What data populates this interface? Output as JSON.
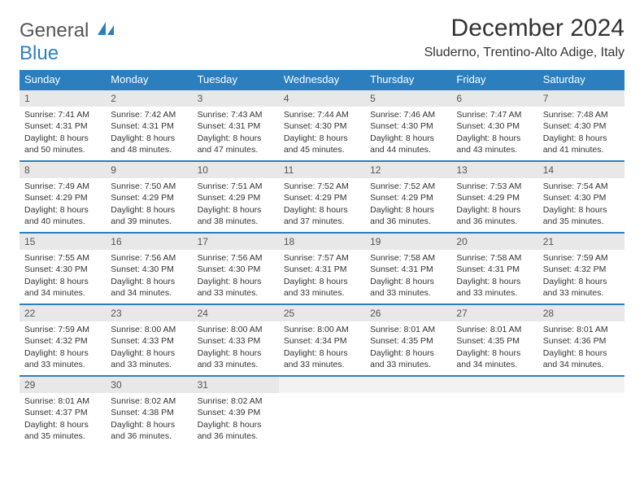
{
  "logo": {
    "line1": "General",
    "line2": "Blue"
  },
  "month_title": "December 2024",
  "location": "Sluderno, Trentino-Alto Adige, Italy",
  "colors": {
    "header_bg": "#2b7fbf",
    "header_fg": "#ffffff",
    "daynum_bg": "#e8e8e8",
    "text": "#333333",
    "rule": "#2b7fbf"
  },
  "weekdays": [
    "Sunday",
    "Monday",
    "Tuesday",
    "Wednesday",
    "Thursday",
    "Friday",
    "Saturday"
  ],
  "weeks": [
    [
      {
        "n": "1",
        "sr": "Sunrise: 7:41 AM",
        "ss": "Sunset: 4:31 PM",
        "d1": "Daylight: 8 hours",
        "d2": "and 50 minutes."
      },
      {
        "n": "2",
        "sr": "Sunrise: 7:42 AM",
        "ss": "Sunset: 4:31 PM",
        "d1": "Daylight: 8 hours",
        "d2": "and 48 minutes."
      },
      {
        "n": "3",
        "sr": "Sunrise: 7:43 AM",
        "ss": "Sunset: 4:31 PM",
        "d1": "Daylight: 8 hours",
        "d2": "and 47 minutes."
      },
      {
        "n": "4",
        "sr": "Sunrise: 7:44 AM",
        "ss": "Sunset: 4:30 PM",
        "d1": "Daylight: 8 hours",
        "d2": "and 45 minutes."
      },
      {
        "n": "5",
        "sr": "Sunrise: 7:46 AM",
        "ss": "Sunset: 4:30 PM",
        "d1": "Daylight: 8 hours",
        "d2": "and 44 minutes."
      },
      {
        "n": "6",
        "sr": "Sunrise: 7:47 AM",
        "ss": "Sunset: 4:30 PM",
        "d1": "Daylight: 8 hours",
        "d2": "and 43 minutes."
      },
      {
        "n": "7",
        "sr": "Sunrise: 7:48 AM",
        "ss": "Sunset: 4:30 PM",
        "d1": "Daylight: 8 hours",
        "d2": "and 41 minutes."
      }
    ],
    [
      {
        "n": "8",
        "sr": "Sunrise: 7:49 AM",
        "ss": "Sunset: 4:29 PM",
        "d1": "Daylight: 8 hours",
        "d2": "and 40 minutes."
      },
      {
        "n": "9",
        "sr": "Sunrise: 7:50 AM",
        "ss": "Sunset: 4:29 PM",
        "d1": "Daylight: 8 hours",
        "d2": "and 39 minutes."
      },
      {
        "n": "10",
        "sr": "Sunrise: 7:51 AM",
        "ss": "Sunset: 4:29 PM",
        "d1": "Daylight: 8 hours",
        "d2": "and 38 minutes."
      },
      {
        "n": "11",
        "sr": "Sunrise: 7:52 AM",
        "ss": "Sunset: 4:29 PM",
        "d1": "Daylight: 8 hours",
        "d2": "and 37 minutes."
      },
      {
        "n": "12",
        "sr": "Sunrise: 7:52 AM",
        "ss": "Sunset: 4:29 PM",
        "d1": "Daylight: 8 hours",
        "d2": "and 36 minutes."
      },
      {
        "n": "13",
        "sr": "Sunrise: 7:53 AM",
        "ss": "Sunset: 4:29 PM",
        "d1": "Daylight: 8 hours",
        "d2": "and 36 minutes."
      },
      {
        "n": "14",
        "sr": "Sunrise: 7:54 AM",
        "ss": "Sunset: 4:30 PM",
        "d1": "Daylight: 8 hours",
        "d2": "and 35 minutes."
      }
    ],
    [
      {
        "n": "15",
        "sr": "Sunrise: 7:55 AM",
        "ss": "Sunset: 4:30 PM",
        "d1": "Daylight: 8 hours",
        "d2": "and 34 minutes."
      },
      {
        "n": "16",
        "sr": "Sunrise: 7:56 AM",
        "ss": "Sunset: 4:30 PM",
        "d1": "Daylight: 8 hours",
        "d2": "and 34 minutes."
      },
      {
        "n": "17",
        "sr": "Sunrise: 7:56 AM",
        "ss": "Sunset: 4:30 PM",
        "d1": "Daylight: 8 hours",
        "d2": "and 33 minutes."
      },
      {
        "n": "18",
        "sr": "Sunrise: 7:57 AM",
        "ss": "Sunset: 4:31 PM",
        "d1": "Daylight: 8 hours",
        "d2": "and 33 minutes."
      },
      {
        "n": "19",
        "sr": "Sunrise: 7:58 AM",
        "ss": "Sunset: 4:31 PM",
        "d1": "Daylight: 8 hours",
        "d2": "and 33 minutes."
      },
      {
        "n": "20",
        "sr": "Sunrise: 7:58 AM",
        "ss": "Sunset: 4:31 PM",
        "d1": "Daylight: 8 hours",
        "d2": "and 33 minutes."
      },
      {
        "n": "21",
        "sr": "Sunrise: 7:59 AM",
        "ss": "Sunset: 4:32 PM",
        "d1": "Daylight: 8 hours",
        "d2": "and 33 minutes."
      }
    ],
    [
      {
        "n": "22",
        "sr": "Sunrise: 7:59 AM",
        "ss": "Sunset: 4:32 PM",
        "d1": "Daylight: 8 hours",
        "d2": "and 33 minutes."
      },
      {
        "n": "23",
        "sr": "Sunrise: 8:00 AM",
        "ss": "Sunset: 4:33 PM",
        "d1": "Daylight: 8 hours",
        "d2": "and 33 minutes."
      },
      {
        "n": "24",
        "sr": "Sunrise: 8:00 AM",
        "ss": "Sunset: 4:33 PM",
        "d1": "Daylight: 8 hours",
        "d2": "and 33 minutes."
      },
      {
        "n": "25",
        "sr": "Sunrise: 8:00 AM",
        "ss": "Sunset: 4:34 PM",
        "d1": "Daylight: 8 hours",
        "d2": "and 33 minutes."
      },
      {
        "n": "26",
        "sr": "Sunrise: 8:01 AM",
        "ss": "Sunset: 4:35 PM",
        "d1": "Daylight: 8 hours",
        "d2": "and 33 minutes."
      },
      {
        "n": "27",
        "sr": "Sunrise: 8:01 AM",
        "ss": "Sunset: 4:35 PM",
        "d1": "Daylight: 8 hours",
        "d2": "and 34 minutes."
      },
      {
        "n": "28",
        "sr": "Sunrise: 8:01 AM",
        "ss": "Sunset: 4:36 PM",
        "d1": "Daylight: 8 hours",
        "d2": "and 34 minutes."
      }
    ],
    [
      {
        "n": "29",
        "sr": "Sunrise: 8:01 AM",
        "ss": "Sunset: 4:37 PM",
        "d1": "Daylight: 8 hours",
        "d2": "and 35 minutes."
      },
      {
        "n": "30",
        "sr": "Sunrise: 8:02 AM",
        "ss": "Sunset: 4:38 PM",
        "d1": "Daylight: 8 hours",
        "d2": "and 36 minutes."
      },
      {
        "n": "31",
        "sr": "Sunrise: 8:02 AM",
        "ss": "Sunset: 4:39 PM",
        "d1": "Daylight: 8 hours",
        "d2": "and 36 minutes."
      },
      {
        "empty": true
      },
      {
        "empty": true
      },
      {
        "empty": true
      },
      {
        "empty": true
      }
    ]
  ]
}
